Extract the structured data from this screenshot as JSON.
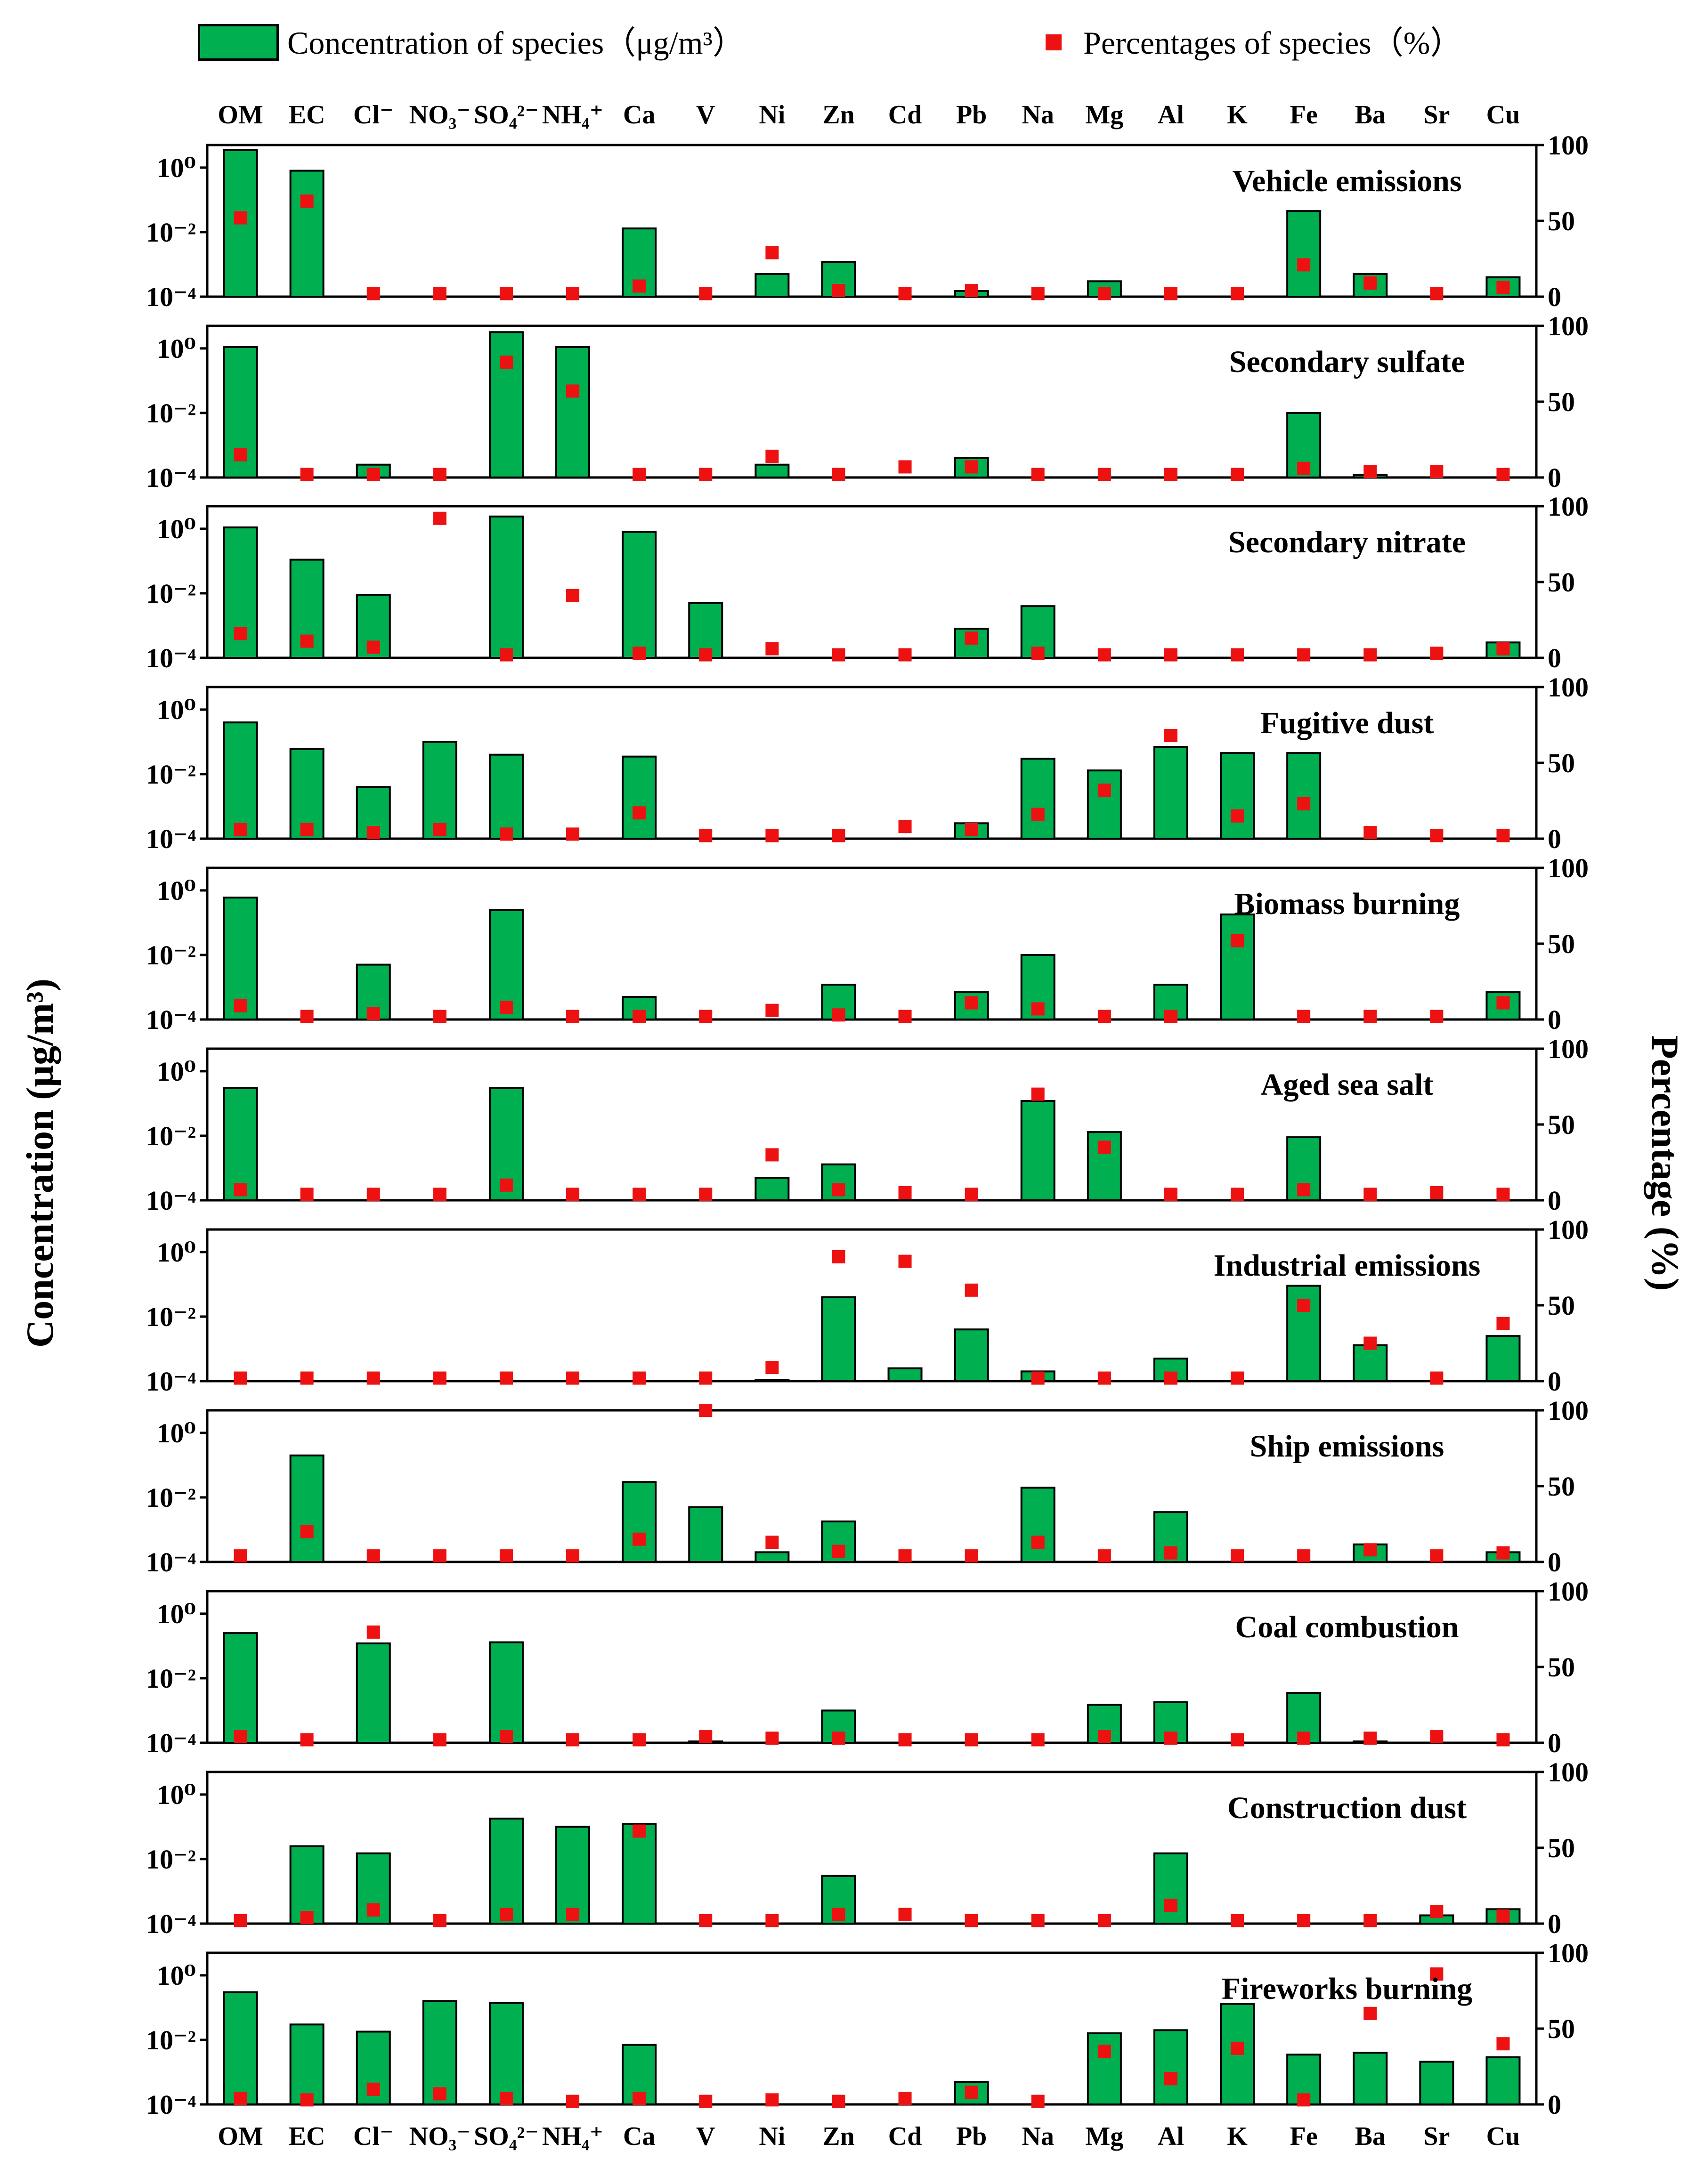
{
  "colors": {
    "bar": "#00b050",
    "marker": "#ee1111",
    "axis": "#000000",
    "background": "#ffffff"
  },
  "legend": {
    "bar_label": "Concentration of species（μg/m³）",
    "marker_label": "Percentages of species（%）"
  },
  "chart_data": {
    "type": "bar",
    "title": "",
    "ylabel_left": "Concentration (μg/m³)",
    "ylabel_right": "Percentage (%)",
    "yscale_left": "log",
    "ylim_left": [
      0.0001,
      5
    ],
    "yticks_left": [
      "10⁰",
      "10⁻²",
      "10⁻⁴"
    ],
    "ylim_right": [
      0,
      100
    ],
    "yticks_right": [
      "100",
      "50",
      "0"
    ],
    "categories": [
      "OM",
      "EC",
      "Cl⁻",
      "NO₃⁻",
      "SO₄²⁻",
      "NH₄⁺",
      "Ca",
      "V",
      "Ni",
      "Zn",
      "Cd",
      "Pb",
      "Na",
      "Mg",
      "Al",
      "K",
      "Fe",
      "Ba",
      "Sr",
      "Cu"
    ],
    "series_types": {
      "concentration": "bar (left axis, log scale)",
      "percentage": "marker (right axis, linear)"
    },
    "panels": [
      {
        "name": "Vehicle emissions",
        "concentration": [
          3.5,
          0.8,
          0,
          0,
          0,
          0,
          0.013,
          0,
          0.0005,
          0.0012,
          0,
          0.00015,
          0,
          0.0003,
          0,
          0,
          0.045,
          0.0005,
          0,
          0.0004
        ],
        "percentage": [
          52,
          63,
          2,
          2,
          2,
          2,
          7,
          2,
          29,
          4,
          2,
          4,
          2,
          2,
          2,
          2,
          21,
          9,
          2,
          6
        ]
      },
      {
        "name": "Secondary sulfate",
        "concentration": [
          1.1,
          0,
          0.00025,
          0,
          3.2,
          1.1,
          0,
          0,
          0.00025,
          0,
          0,
          0.0004,
          0,
          0,
          0,
          0,
          0.01,
          0.00012,
          0,
          0
        ],
        "percentage": [
          15,
          2,
          2,
          2,
          76,
          57,
          2,
          2,
          14,
          2,
          7,
          7,
          2,
          2,
          2,
          2,
          6,
          4,
          4,
          2
        ]
      },
      {
        "name": "Secondary nitrate",
        "concentration": [
          1.1,
          0.11,
          0.009,
          0,
          2.4,
          0,
          0.8,
          0.005,
          0,
          0,
          0,
          0.0008,
          0.004,
          0,
          0,
          0,
          0,
          0,
          0,
          0.0003
        ],
        "percentage": [
          16,
          11,
          7,
          92,
          2,
          41,
          3,
          2,
          6,
          2,
          2,
          13,
          3,
          2,
          2,
          2,
          2,
          2,
          3,
          6
        ]
      },
      {
        "name": "Fugitive dust",
        "concentration": [
          0.4,
          0.06,
          0.004,
          0.1,
          0.04,
          0,
          0.035,
          0,
          0,
          0,
          0,
          0.0003,
          0.03,
          0.013,
          0.07,
          0.045,
          0.045,
          0,
          0,
          0
        ],
        "percentage": [
          6,
          6,
          4,
          6,
          3,
          3,
          17,
          2,
          2,
          2,
          8,
          6,
          16,
          32,
          68,
          15,
          23,
          4,
          2,
          2
        ]
      },
      {
        "name": "Biomass burning",
        "concentration": [
          0.6,
          0,
          0.005,
          0,
          0.25,
          0,
          0.0005,
          0,
          0,
          0.0012,
          0,
          0.0007,
          0.01,
          0,
          0.0012,
          0.18,
          0,
          0,
          0,
          0.0007
        ],
        "percentage": [
          9,
          2,
          4,
          2,
          8,
          2,
          2,
          2,
          6,
          3,
          2,
          11,
          7,
          2,
          2,
          52,
          2,
          2,
          2,
          11
        ]
      },
      {
        "name": "Aged sea salt",
        "concentration": [
          0.3,
          0,
          0,
          0,
          0.3,
          0,
          0,
          0,
          0.0005,
          0.0013,
          0,
          0,
          0.12,
          0.013,
          0,
          0,
          0.009,
          0,
          0,
          0
        ],
        "percentage": [
          7,
          4,
          4,
          4,
          10,
          4,
          4,
          4,
          30,
          7,
          5,
          4,
          70,
          35,
          4,
          4,
          7,
          4,
          5,
          4
        ]
      },
      {
        "name": "Industrial emissions",
        "concentration": [
          0,
          0,
          0,
          0,
          0,
          0,
          0,
          0,
          0.00011,
          0.04,
          0.00025,
          0.004,
          0.0002,
          0,
          0.0005,
          0,
          0.09,
          0.0013,
          0,
          0.0025
        ],
        "percentage": [
          2,
          2,
          2,
          2,
          2,
          2,
          2,
          2,
          9,
          82,
          79,
          60,
          2,
          2,
          2,
          2,
          50,
          25,
          2,
          38
        ]
      },
      {
        "name": "Ship emissions",
        "concentration": [
          0,
          0.2,
          0,
          0,
          0,
          0,
          0.03,
          0.005,
          0.0002,
          0.0018,
          0,
          0,
          0.02,
          0,
          0.0035,
          0,
          0,
          0.00035,
          0,
          0.0002
        ],
        "percentage": [
          4,
          20,
          4,
          4,
          4,
          4,
          15,
          100,
          13,
          7,
          4,
          4,
          13,
          4,
          6,
          4,
          4,
          8,
          4,
          6
        ]
      },
      {
        "name": "Coal combustion",
        "concentration": [
          0.25,
          0,
          0.12,
          0,
          0.13,
          0,
          0,
          0.00011,
          0,
          0.001,
          0,
          0,
          0,
          0.0015,
          0.0018,
          0,
          0.0035,
          0.00011,
          0,
          0
        ],
        "percentage": [
          4,
          2,
          73,
          2,
          4,
          2,
          2,
          4,
          3,
          3,
          2,
          2,
          2,
          4,
          3,
          2,
          3,
          3,
          4,
          2
        ]
      },
      {
        "name": "Construction dust",
        "concentration": [
          0,
          0.025,
          0.015,
          0,
          0.18,
          0.1,
          0.12,
          0,
          0,
          0.003,
          0,
          0,
          0,
          0,
          0.015,
          0,
          0,
          0,
          0.00018,
          0.00028
        ],
        "percentage": [
          2,
          4,
          9,
          2,
          6,
          6,
          61,
          2,
          2,
          6,
          6,
          2,
          2,
          2,
          12,
          2,
          2,
          2,
          8,
          5
        ]
      },
      {
        "name": "Fireworks burning",
        "concentration": [
          0.3,
          0.03,
          0.018,
          0.16,
          0.14,
          0,
          0.007,
          0,
          0,
          0,
          0,
          0.0005,
          0,
          0.016,
          0.02,
          0.13,
          0.0035,
          0.004,
          0.0021,
          0.0029
        ],
        "percentage": [
          4,
          3,
          10,
          7,
          4,
          2,
          4,
          2,
          3,
          2,
          4,
          8,
          2,
          35,
          17,
          37,
          3,
          60,
          86,
          40
        ]
      }
    ]
  }
}
